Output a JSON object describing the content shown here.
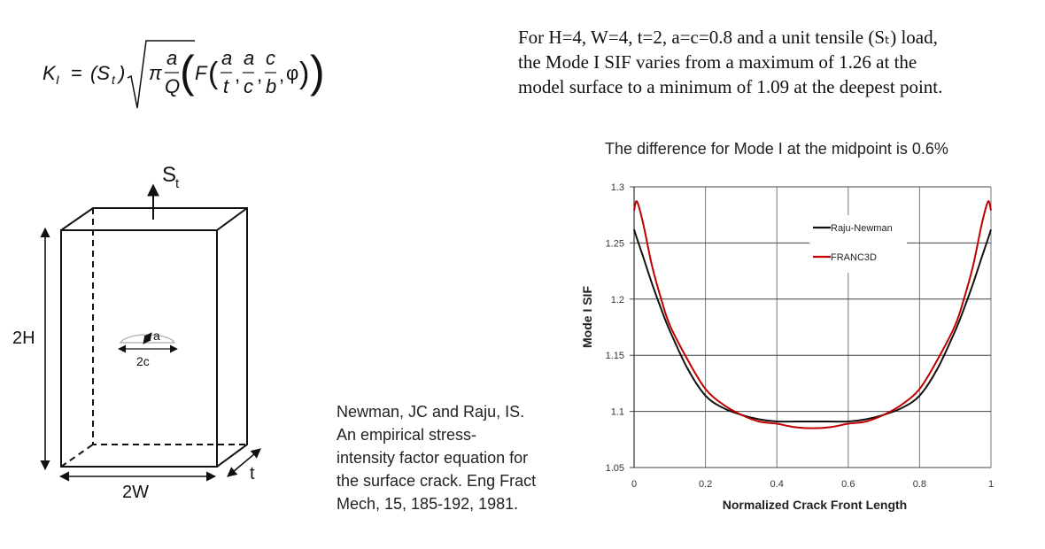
{
  "formula": {
    "lhs": "K",
    "lhs_sub": "I",
    "equals": "=",
    "load": "(S",
    "load_sub": "t",
    "load_close": ")",
    "pi": "π",
    "frac_num": "a",
    "frac_den": "Q",
    "F": "F",
    "args": [
      {
        "num": "a",
        "den": "t"
      },
      {
        "num": "a",
        "den": "c"
      },
      {
        "num": "c",
        "den": "b"
      }
    ],
    "phi": "φ"
  },
  "summary": {
    "lines": [
      "For H=4, W=4, t=2, a=c=0.8 and a unit tensile (Sₜ) load,",
      "the Mode I SIF varies from a maximum of 1.26 at the",
      "model surface to a minimum of 1.09 at the deepest point."
    ]
  },
  "diagram": {
    "load_label": "S",
    "load_sub": "t",
    "height_label": "2H",
    "width_label": "2W",
    "thickness_label": "t",
    "depth_label": "a",
    "crack_length_label": "2c"
  },
  "citation": {
    "lines": [
      "Newman, JC and Raju, IS.",
      "An empirical stress-",
      "intensity factor equation for",
      "the surface crack. Eng Fract",
      "Mech, 15, 185-192, 1981."
    ]
  },
  "chart_data": {
    "type": "line",
    "title": "The difference for Mode I at the midpoint is 0.6%",
    "xlabel": "Normalized Crack Front Length",
    "ylabel": "Mode I SIF",
    "xlim": [
      0,
      1
    ],
    "ylim": [
      1.05,
      1.3
    ],
    "xticks": [
      "0",
      "0.2",
      "0.4",
      "0.6",
      "0.8",
      "1"
    ],
    "yticks": [
      "1.05",
      "1.1",
      "1.15",
      "1.2",
      "1.25",
      "1.3"
    ],
    "grid": true,
    "legend_position": "top-center",
    "x": [
      0,
      0.008,
      0.025,
      0.05,
      0.075,
      0.1,
      0.15,
      0.2,
      0.25,
      0.3,
      0.35,
      0.4,
      0.45,
      0.5,
      0.55,
      0.6,
      0.65,
      0.7,
      0.75,
      0.8,
      0.85,
      0.9,
      0.925,
      0.95,
      0.975,
      0.992,
      1
    ],
    "series": [
      {
        "name": "Raju-Newman",
        "color": "#111111",
        "values": [
          1.262,
          1.254,
          1.238,
          1.214,
          1.192,
          1.172,
          1.138,
          1.114,
          1.103,
          1.097,
          1.093,
          1.091,
          1.091,
          1.091,
          1.091,
          1.091,
          1.093,
          1.097,
          1.103,
          1.114,
          1.138,
          1.172,
          1.192,
          1.214,
          1.238,
          1.254,
          1.262
        ]
      },
      {
        "name": "FRANC3D",
        "color": "#c00000",
        "values": [
          1.279,
          1.287,
          1.268,
          1.23,
          1.201,
          1.177,
          1.146,
          1.12,
          1.106,
          1.097,
          1.091,
          1.089,
          1.086,
          1.085,
          1.086,
          1.089,
          1.091,
          1.097,
          1.106,
          1.12,
          1.146,
          1.177,
          1.201,
          1.23,
          1.268,
          1.287,
          1.279
        ]
      }
    ]
  }
}
